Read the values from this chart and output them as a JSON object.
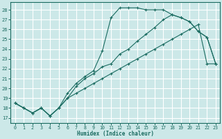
{
  "xlabel": "Humidex (Indice chaleur)",
  "xlim": [
    -0.5,
    23.5
  ],
  "ylim": [
    16.5,
    28.8
  ],
  "yticks": [
    17,
    18,
    19,
    20,
    21,
    22,
    23,
    24,
    25,
    26,
    27,
    28
  ],
  "xticks": [
    0,
    1,
    2,
    3,
    4,
    5,
    6,
    7,
    8,
    9,
    10,
    11,
    12,
    13,
    14,
    15,
    16,
    17,
    18,
    19,
    20,
    21,
    22,
    23
  ],
  "bg_color": "#cce8e8",
  "line_color": "#1a6b60",
  "grid_color": "#b8d8d8",
  "line1_x": [
    0,
    1,
    2,
    3,
    4,
    5,
    6,
    7,
    8,
    9,
    10,
    11,
    12,
    13,
    14,
    15,
    16,
    17,
    18,
    19,
    20,
    21,
    22,
    23
  ],
  "line1_y": [
    18.5,
    18.0,
    17.5,
    18.0,
    17.2,
    18.0,
    19.5,
    20.5,
    21.2,
    21.8,
    23.8,
    27.2,
    28.2,
    28.2,
    28.2,
    28.0,
    28.0,
    28.0,
    27.5,
    27.2,
    26.8,
    25.8,
    25.2,
    22.5
  ],
  "line2_x": [
    0,
    1,
    2,
    3,
    4,
    5,
    6,
    7,
    8,
    9,
    10,
    11,
    12,
    13,
    14,
    15,
    16,
    17,
    18,
    19,
    20,
    21,
    22,
    23
  ],
  "line2_y": [
    18.5,
    18.0,
    17.5,
    18.0,
    17.2,
    18.0,
    19.0,
    20.2,
    21.0,
    21.5,
    22.2,
    22.5,
    23.5,
    24.0,
    24.8,
    25.5,
    26.2,
    27.0,
    27.5,
    27.2,
    26.8,
    25.8,
    25.2,
    22.5
  ],
  "line3_x": [
    0,
    1,
    2,
    3,
    4,
    5,
    6,
    7,
    8,
    9,
    10,
    11,
    12,
    13,
    14,
    15,
    16,
    17,
    18,
    19,
    20,
    21,
    22,
    23
  ],
  "line3_y": [
    18.5,
    18.0,
    17.5,
    18.0,
    17.2,
    18.0,
    19.0,
    19.5,
    20.0,
    20.5,
    21.0,
    21.5,
    22.0,
    22.5,
    23.0,
    23.5,
    24.0,
    24.5,
    25.0,
    25.5,
    26.0,
    26.5,
    22.5,
    22.5
  ]
}
